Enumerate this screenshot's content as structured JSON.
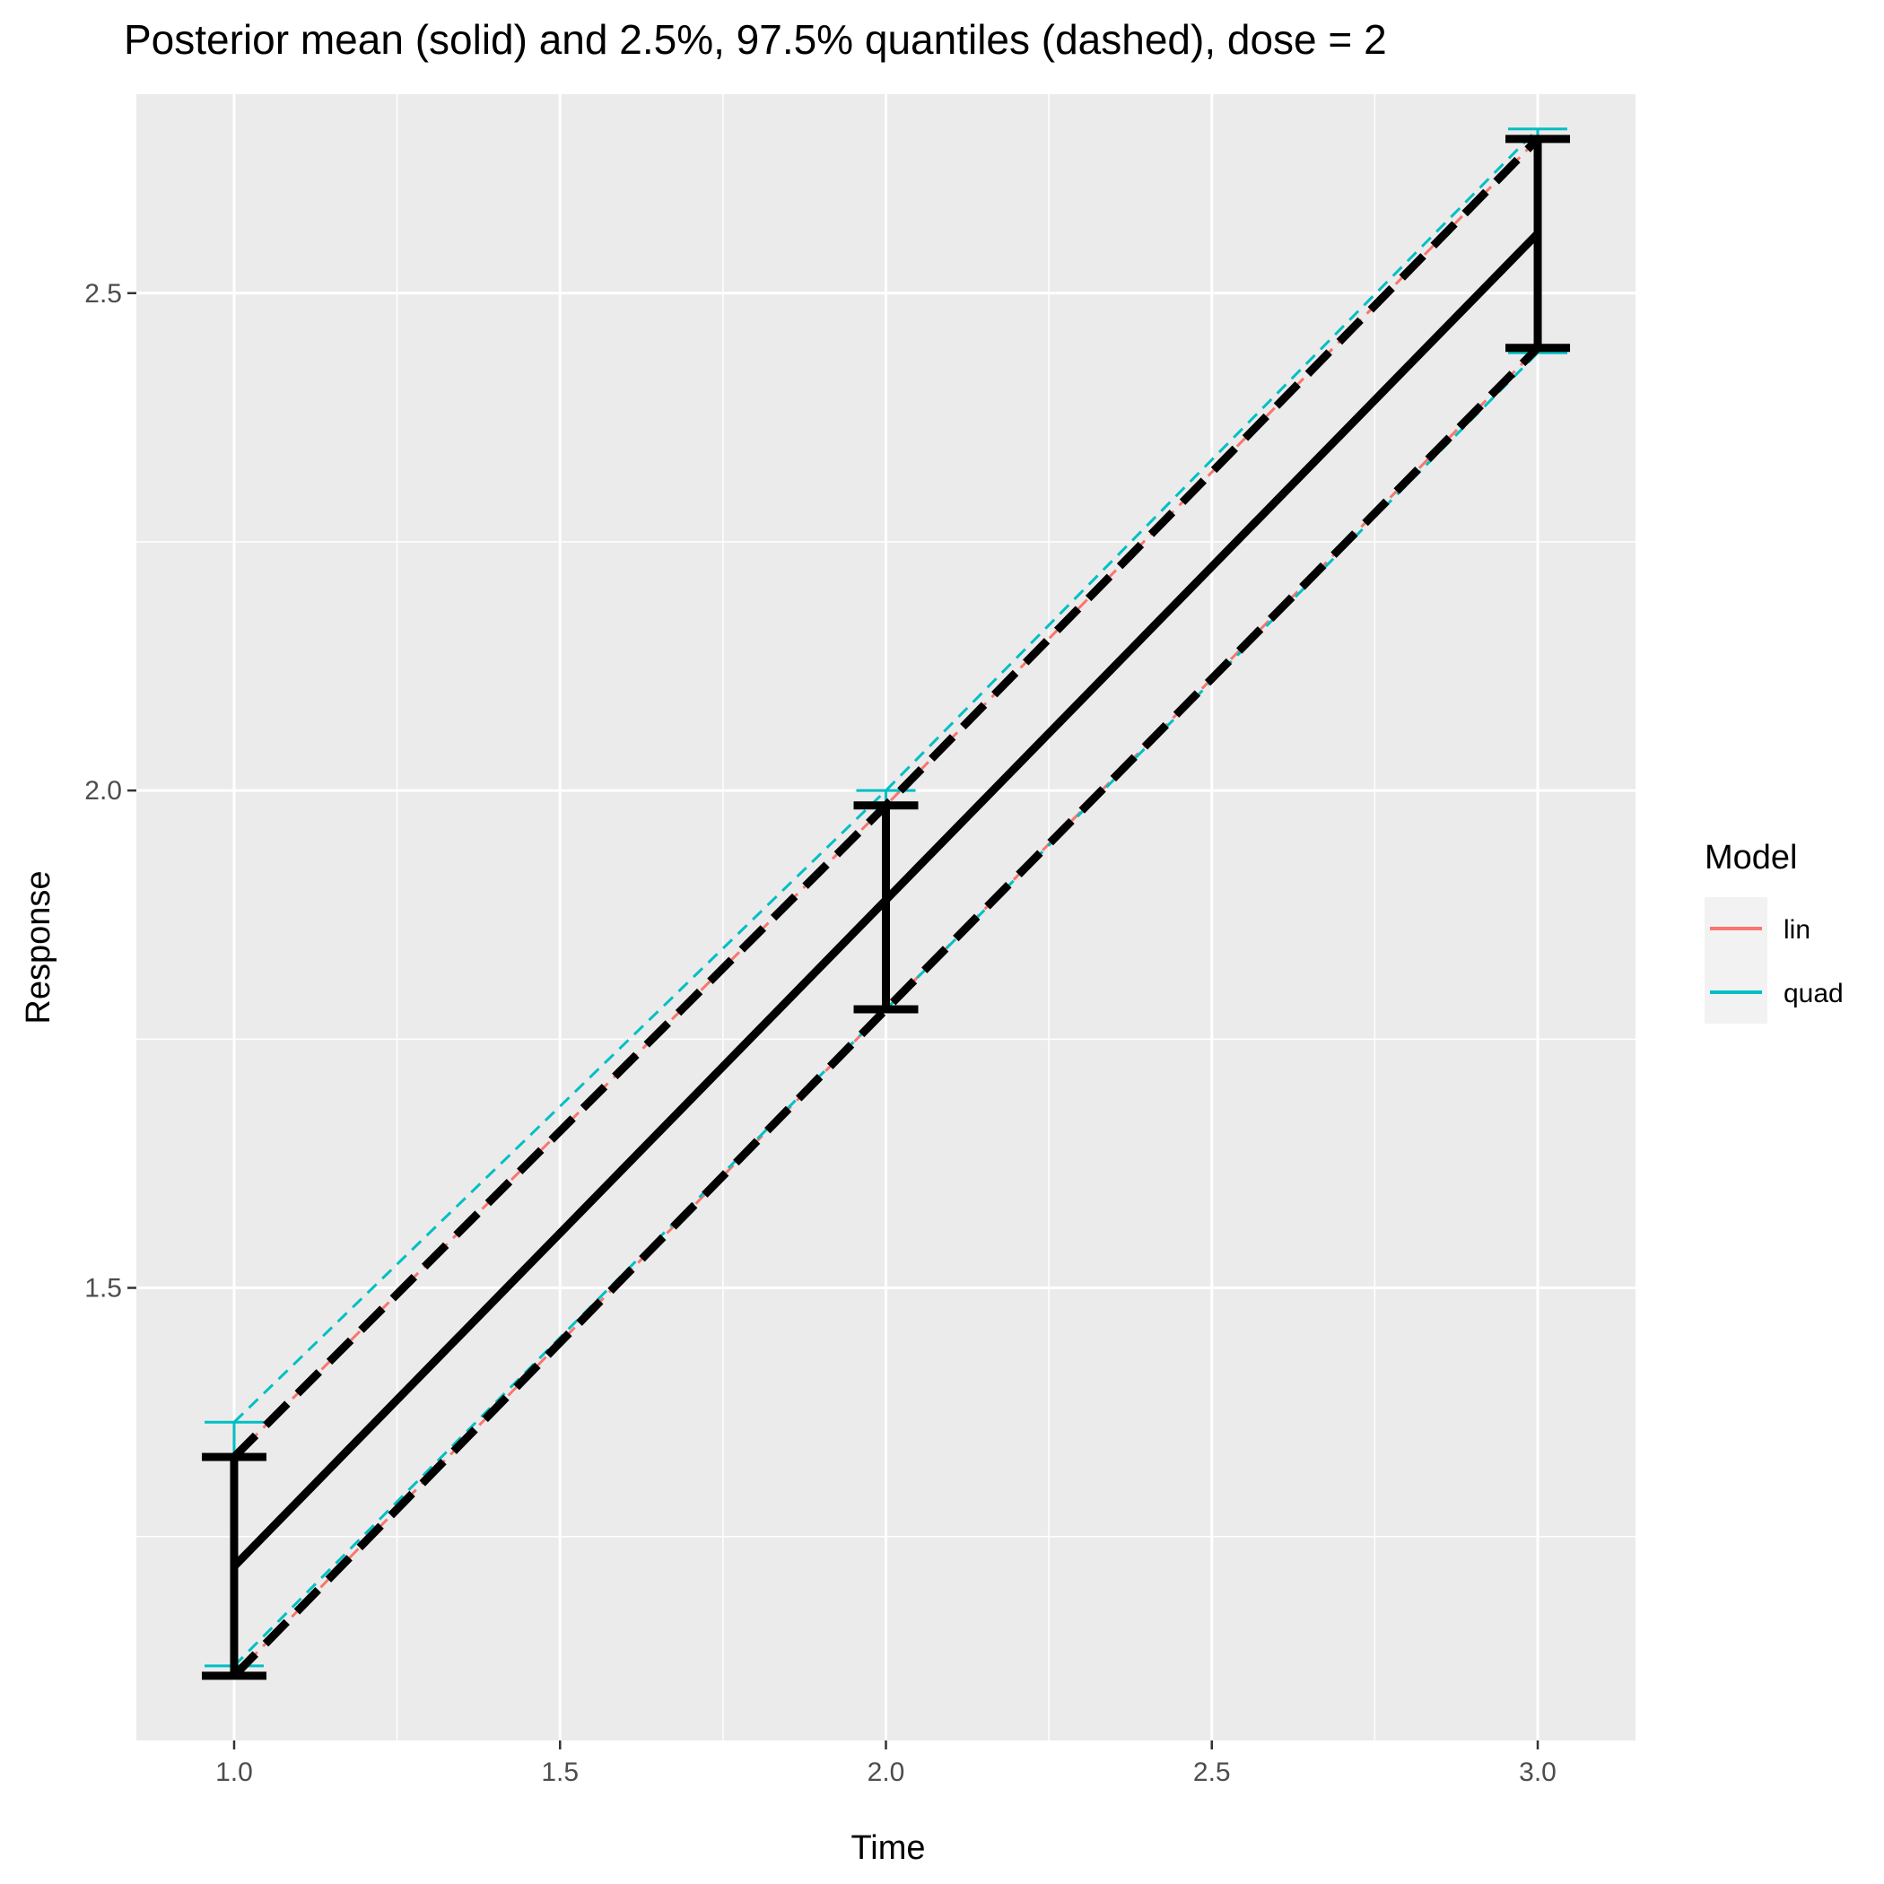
{
  "chart_data": {
    "type": "line",
    "title": "Posterior mean (solid) and 2.5%, 97.5% quantiles (dashed), dose = 2",
    "xlabel": "Time",
    "ylabel": "Response",
    "x": [
      1,
      2,
      3
    ],
    "xlim": [
      0.85,
      3.15
    ],
    "ylim": [
      1.045,
      2.7
    ],
    "x_ticks": [
      1.0,
      1.5,
      2.0,
      2.5,
      3.0
    ],
    "x_tick_labels": [
      "1.0",
      "1.5",
      "2.0",
      "2.5",
      "3.0"
    ],
    "y_ticks": [
      1.5,
      2.0,
      2.5
    ],
    "y_tick_labels": [
      "1.5",
      "2.0",
      "2.5"
    ],
    "grid": true,
    "legend": {
      "title": "Model",
      "position": "right",
      "entries": [
        {
          "name": "lin",
          "color": "#F8766D"
        },
        {
          "name": "quad",
          "color": "#00BFC4"
        }
      ]
    },
    "series": [
      {
        "name": "lin",
        "color": "#F8766D",
        "mean": [
          1.22,
          1.89,
          2.56
        ],
        "lower": [
          1.11,
          1.78,
          2.445
        ],
        "upper": [
          1.33,
          1.985,
          2.655
        ]
      },
      {
        "name": "quad",
        "color": "#00BFC4",
        "mean": [
          1.22,
          1.89,
          2.56
        ],
        "lower": [
          1.12,
          1.78,
          2.44
        ],
        "upper": [
          1.365,
          2.0,
          2.665
        ]
      },
      {
        "name": "",
        "color": "#000000",
        "mean": [
          1.22,
          1.89,
          2.56
        ],
        "lower": [
          1.11,
          1.78,
          2.445
        ],
        "upper": [
          1.33,
          1.985,
          2.655
        ]
      }
    ]
  }
}
